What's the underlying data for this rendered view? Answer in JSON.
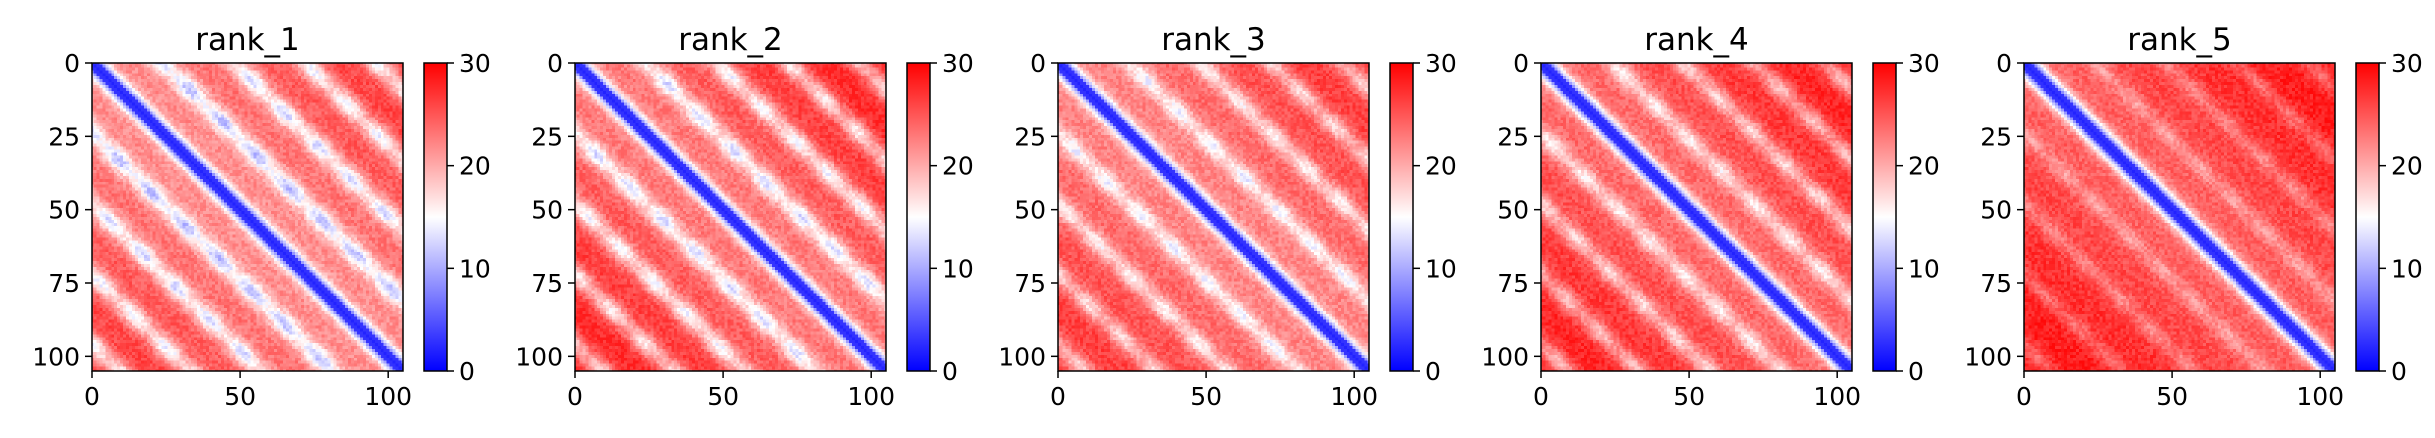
{
  "chart_data": [
    {
      "type": "heatmap",
      "title": "rank_1",
      "n": 106,
      "xlim": [
        0,
        105
      ],
      "ylim": [
        105,
        0
      ],
      "xticks": [
        0,
        50,
        100
      ],
      "yticks": [
        0,
        25,
        50,
        75,
        100
      ],
      "colorbar": {
        "min": 0,
        "max": 30,
        "ticks": [
          0,
          10,
          20,
          30
        ],
        "colormap": "bwr"
      },
      "structure": {
        "diagonal_width": 4.5,
        "band_period": 24,
        "band_width": 4.8,
        "band_strength": 0.55,
        "background": 21,
        "ramp": 0.06,
        "ceiling": 28
      }
    },
    {
      "type": "heatmap",
      "title": "rank_2",
      "n": 106,
      "xlim": [
        0,
        105
      ],
      "ylim": [
        105,
        0
      ],
      "xticks": [
        0,
        50,
        100
      ],
      "yticks": [
        0,
        25,
        50,
        75,
        100
      ],
      "colorbar": {
        "min": 0,
        "max": 30,
        "ticks": [
          0,
          10,
          20,
          30
        ],
        "colormap": "bwr"
      },
      "structure": {
        "diagonal_width": 4.5,
        "band_period": 24,
        "band_width": 4.8,
        "band_strength": 0.5,
        "background": 22,
        "ramp": 0.07,
        "ceiling": 28.5
      }
    },
    {
      "type": "heatmap",
      "title": "rank_3",
      "n": 106,
      "xlim": [
        0,
        105
      ],
      "ylim": [
        105,
        0
      ],
      "xticks": [
        0,
        50,
        100
      ],
      "yticks": [
        0,
        25,
        50,
        75,
        100
      ],
      "colorbar": {
        "min": 0,
        "max": 30,
        "ticks": [
          0,
          10,
          20,
          30
        ],
        "colormap": "bwr"
      },
      "structure": {
        "diagonal_width": 4.5,
        "band_period": 24,
        "band_width": 4.5,
        "band_strength": 0.42,
        "background": 21.5,
        "ramp": 0.06,
        "ceiling": 28.5
      }
    },
    {
      "type": "heatmap",
      "title": "rank_4",
      "n": 106,
      "xlim": [
        0,
        105
      ],
      "ylim": [
        105,
        0
      ],
      "xticks": [
        0,
        50,
        100
      ],
      "yticks": [
        0,
        25,
        50,
        75,
        100
      ],
      "colorbar": {
        "min": 0,
        "max": 30,
        "ticks": [
          0,
          10,
          20,
          30
        ],
        "colormap": "bwr"
      },
      "structure": {
        "diagonal_width": 4.8,
        "band_period": 24,
        "band_width": 4.5,
        "band_strength": 0.38,
        "background": 23,
        "ramp": 0.06,
        "ceiling": 29
      }
    },
    {
      "type": "heatmap",
      "title": "rank_5",
      "n": 106,
      "xlim": [
        0,
        105
      ],
      "ylim": [
        105,
        0
      ],
      "xticks": [
        0,
        50,
        100
      ],
      "yticks": [
        0,
        25,
        50,
        75,
        100
      ],
      "colorbar": {
        "min": 0,
        "max": 30,
        "ticks": [
          0,
          10,
          20,
          30
        ],
        "colormap": "bwr"
      },
      "structure": {
        "diagonal_width": 5,
        "band_period": 24,
        "band_width": 4,
        "band_strength": 0.2,
        "background": 23.5,
        "ramp": 0.06,
        "ceiling": 29.5
      }
    }
  ]
}
